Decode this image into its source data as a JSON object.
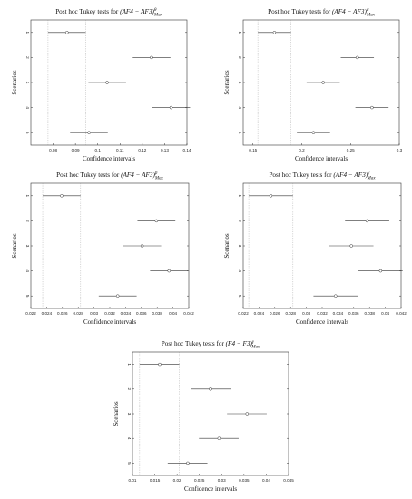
{
  "chart_data": [
    {
      "type": "scatter",
      "title_prefix": "Post hoc Tukey tests for",
      "title_expr": "(AF4 − AF3)",
      "title_sup": "θ",
      "title_sub": "Max",
      "xlabel": "Confidence intervals",
      "ylabel": "Scenarios",
      "xlim": [
        0.07,
        0.14
      ],
      "xticks": [
        "0.08",
        "0.09",
        "0.1",
        "0.11",
        "0.12",
        "0.13",
        "0.14"
      ],
      "xtick_values": [
        0.08,
        0.09,
        0.1,
        0.11,
        0.12,
        0.13,
        0.14
      ],
      "yticks": [
        "1",
        "2",
        "3",
        "4",
        "5"
      ],
      "means": [
        0.0862,
        0.1241,
        0.1042,
        0.1329,
        0.0961
      ],
      "lower": [
        0.0777,
        0.1157,
        0.0958,
        0.1245,
        0.0876
      ],
      "upper": [
        0.0946,
        0.1326,
        0.1127,
        0.1414,
        0.1045
      ],
      "highlight": 1
    },
    {
      "type": "scatter",
      "title_prefix": "Post hoc Tukey tests for",
      "title_expr": "(AF4 − AF3)",
      "title_sup": "α",
      "title_sub": "Max",
      "xlabel": "Confidence intervals",
      "ylabel": "Scenarios",
      "xlim": [
        0.14,
        0.3
      ],
      "xticks": [
        "0.15",
        "0.2",
        "0.25",
        "0.3"
      ],
      "xtick_values": [
        0.15,
        0.2,
        0.25,
        0.3
      ],
      "yticks": [
        "1",
        "2",
        "3",
        "4",
        "5"
      ],
      "means": [
        0.172,
        0.257,
        0.222,
        0.272,
        0.212
      ],
      "lower": [
        0.155,
        0.24,
        0.205,
        0.255,
        0.195
      ],
      "upper": [
        0.189,
        0.274,
        0.239,
        0.289,
        0.229
      ],
      "highlight": 1
    },
    {
      "type": "scatter",
      "title_prefix": "Post hoc Tukey tests for",
      "title_expr": "(AF4 − AF3)",
      "title_sup": "β",
      "title_sub": "Max",
      "xlabel": "Confidence intervals",
      "ylabel": "Scenarios",
      "xlim": [
        0.022,
        0.042
      ],
      "xticks": [
        "0.022",
        "0.024",
        "0.026",
        "0.028",
        "0.03",
        "0.032",
        "0.034",
        "0.036",
        "0.038",
        "0.04",
        "0.042"
      ],
      "xtick_values": [
        0.022,
        0.024,
        0.026,
        0.028,
        0.03,
        0.032,
        0.034,
        0.036,
        0.038,
        0.04,
        0.042
      ],
      "yticks": [
        "1",
        "2",
        "3",
        "4",
        "5"
      ],
      "means": [
        0.0259,
        0.0379,
        0.0361,
        0.0395,
        0.033
      ],
      "lower": [
        0.0235,
        0.0355,
        0.0337,
        0.0371,
        0.0306
      ],
      "upper": [
        0.0283,
        0.0403,
        0.0385,
        0.0419,
        0.0354
      ],
      "highlight": 1
    },
    {
      "type": "scatter",
      "title_prefix": "Post hoc Tukey tests for",
      "title_expr": "(AF4 − AF3)",
      "title_sup": "γ",
      "title_sub": "Max",
      "xlabel": "Confidence intervals",
      "ylabel": "Scenarios",
      "xlim": [
        0.022,
        0.042
      ],
      "xticks": [
        "0.022",
        "0.024",
        "0.026",
        "0.028",
        "0.03",
        "0.032",
        "0.034",
        "0.036",
        "0.038",
        "0.04",
        "0.042"
      ],
      "xtick_values": [
        0.022,
        0.024,
        0.026,
        0.028,
        0.03,
        0.032,
        0.034,
        0.036,
        0.038,
        0.04,
        0.042
      ],
      "yticks": [
        "1",
        "2",
        "3",
        "4",
        "5"
      ],
      "means": [
        0.0255,
        0.0377,
        0.0357,
        0.0394,
        0.0337
      ],
      "lower": [
        0.0227,
        0.0349,
        0.0329,
        0.0366,
        0.0309
      ],
      "upper": [
        0.0283,
        0.0405,
        0.0385,
        0.0422,
        0.0365
      ],
      "highlight": 1
    },
    {
      "type": "scatter",
      "title_prefix": "Post hoc Tukey tests for",
      "title_expr": "(F4 − F3)",
      "title_sup": "γ",
      "title_sub": "Max",
      "xlabel": "Confidence intervals",
      "ylabel": "Scenarios",
      "xlim": [
        0.01,
        0.045
      ],
      "xticks": [
        "0.01",
        "0.015",
        "0.02",
        "0.025",
        "0.03",
        "0.035",
        "0.04",
        "0.045"
      ],
      "xtick_values": [
        0.01,
        0.015,
        0.02,
        0.025,
        0.03,
        0.035,
        0.04,
        0.045
      ],
      "yticks": [
        "1",
        "2",
        "3",
        "4",
        "5"
      ],
      "means": [
        0.0161,
        0.0275,
        0.0357,
        0.0294,
        0.0224
      ],
      "lower": [
        0.0116,
        0.0231,
        0.0312,
        0.0249,
        0.0179
      ],
      "upper": [
        0.0205,
        0.032,
        0.0401,
        0.0338,
        0.0268
      ],
      "highlight": 1
    }
  ]
}
